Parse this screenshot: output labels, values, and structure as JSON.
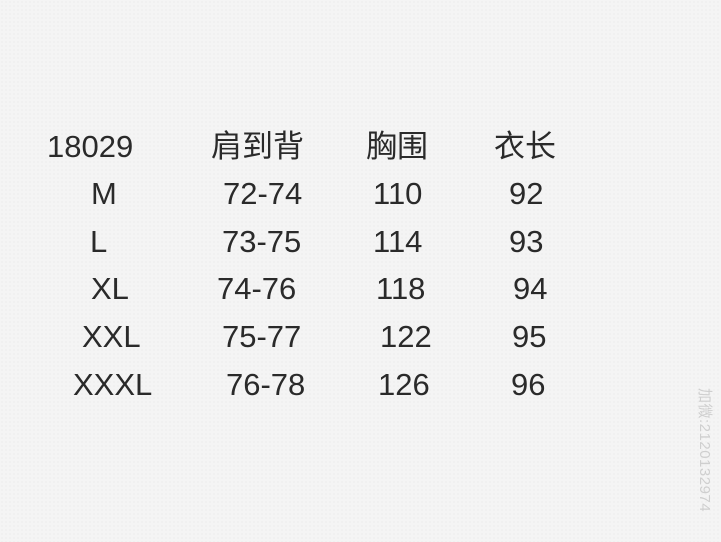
{
  "header": [
    "18029",
    "肩到背",
    "胸围",
    "衣长"
  ],
  "rows": [
    [
      "M",
      "72-74",
      "110",
      "92"
    ],
    [
      "L",
      "73-75",
      "114",
      "93"
    ],
    [
      "XL",
      "74-76",
      "118",
      "94"
    ],
    [
      "XXL",
      "75-77",
      "122",
      "95"
    ],
    [
      "XXXL",
      "76-78",
      "126",
      "96"
    ]
  ],
  "watermark": "加微:2120132974"
}
